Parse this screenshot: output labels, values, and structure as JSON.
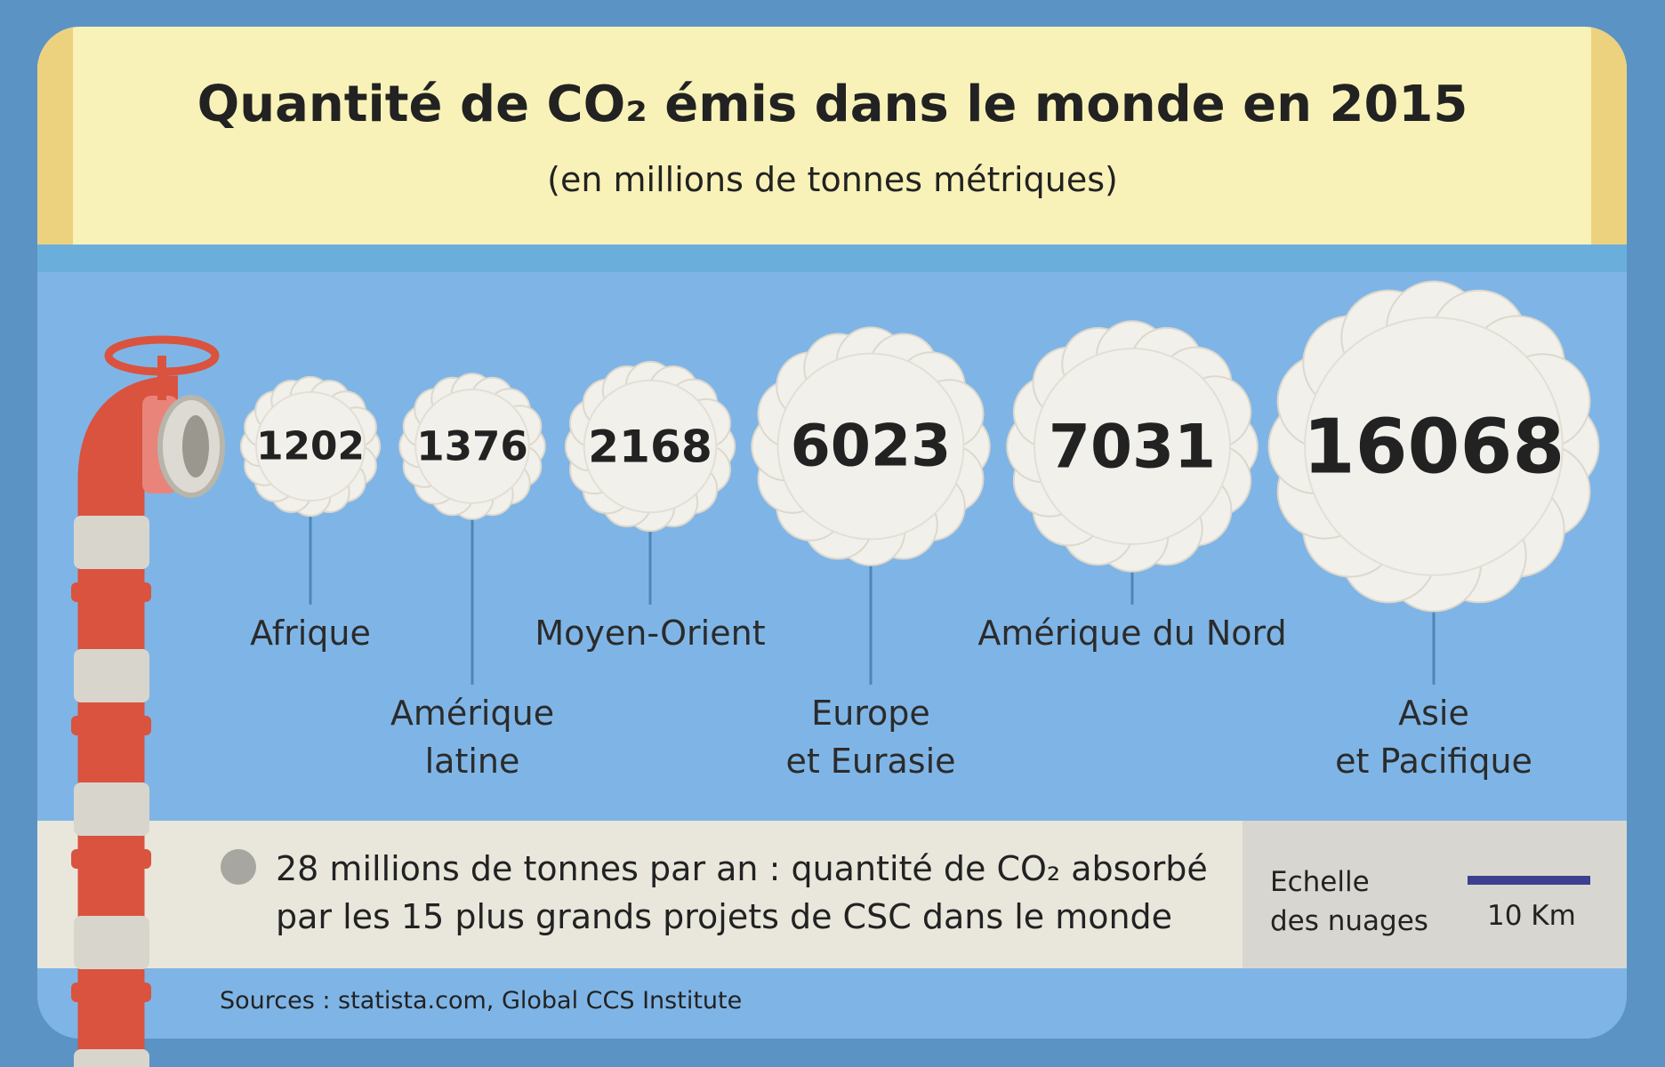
{
  "chart_data": {
    "type": "bubble",
    "title": "Quantité de CO₂ émis dans le monde en 2015",
    "subtitle": "(en millions de tonnes métriques)",
    "categories": [
      "Afrique",
      "Amérique\nlatine",
      "Moyen-Orient",
      "Europe\net Eurasie",
      "Amérique du Nord",
      "Asie\net Pacifique"
    ],
    "values": [
      1202,
      1376,
      2168,
      6023,
      7031,
      16068
    ],
    "color": "#f2f0ea",
    "legend_note": "28 millions de tonnes par an : quantité de CO₂ absorbé par les 15 plus grands projets de CSC dans le monde",
    "scale_label": "Echelle\ndes nuages",
    "scale_value": "10 Km",
    "source": "Sources : statista.com, Global CCS Institute"
  }
}
